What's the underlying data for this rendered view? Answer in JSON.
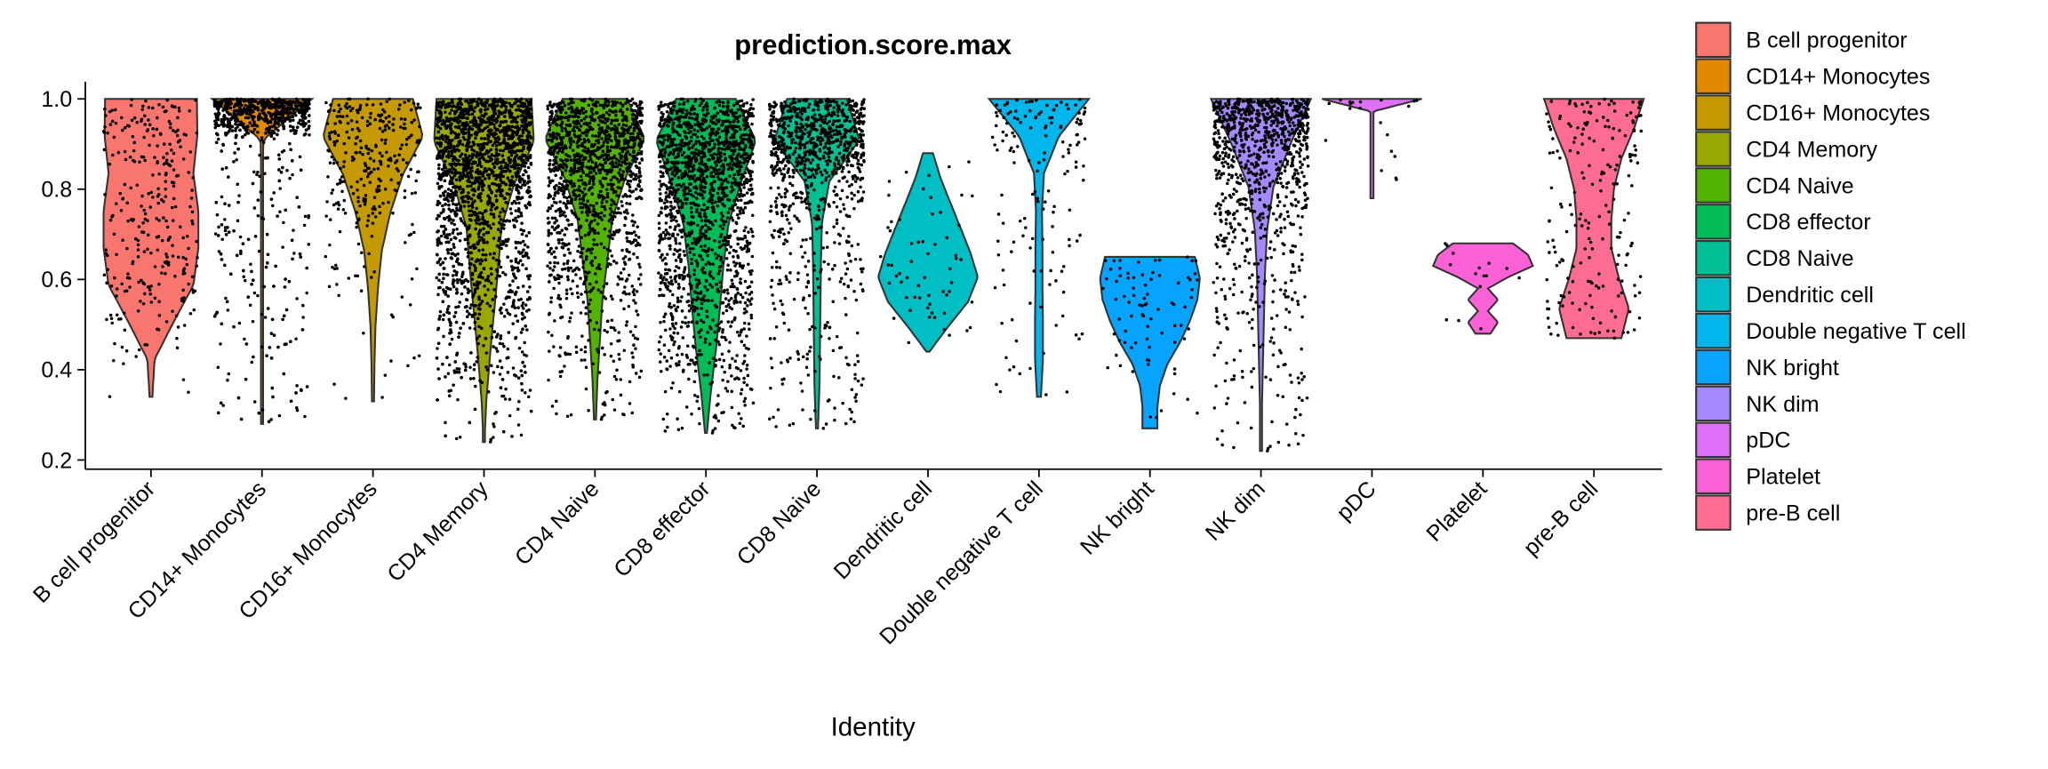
{
  "chart_data": {
    "type": "violin",
    "title": "prediction.score.max",
    "xlabel": "Identity",
    "ylabel": "",
    "ylim": [
      0.18,
      1.03
    ],
    "yticks": [
      "0.2",
      "0.4",
      "0.6",
      "0.8",
      "1.0"
    ],
    "grid": false,
    "legend_position": "right",
    "density_note": "relative density sampled at 9 evenly spaced points from min to max",
    "groups": [
      {
        "name": "B cell progenitor",
        "color": "#F8766D",
        "min": 0.34,
        "max": 1.0,
        "n": 300,
        "density": [
          0.03,
          0.07,
          0.45,
          0.85,
          0.95,
          0.95,
          0.85,
          0.93,
          0.92
        ]
      },
      {
        "name": "CD14+ Monocytes",
        "color": "#E38900",
        "min": 0.28,
        "max": 1.0,
        "n": 1100,
        "density": [
          0.01,
          0.01,
          0.01,
          0.01,
          0.01,
          0.01,
          0.01,
          0.03,
          1.0
        ]
      },
      {
        "name": "CD16+ Monocytes",
        "color": "#C49A00",
        "min": 0.33,
        "max": 1.0,
        "n": 300,
        "density": [
          0.02,
          0.03,
          0.05,
          0.1,
          0.18,
          0.35,
          0.6,
          1.0,
          0.8
        ]
      },
      {
        "name": "CD4 Memory",
        "color": "#99A800",
        "min": 0.24,
        "max": 1.0,
        "n": 2600,
        "density": [
          0.01,
          0.05,
          0.12,
          0.2,
          0.28,
          0.35,
          0.6,
          1.0,
          0.95
        ]
      },
      {
        "name": "CD4 Naive",
        "color": "#53B400",
        "min": 0.29,
        "max": 1.0,
        "n": 1400,
        "density": [
          0.02,
          0.05,
          0.1,
          0.15,
          0.25,
          0.35,
          0.6,
          1.0,
          0.65
        ]
      },
      {
        "name": "CD8 effector",
        "color": "#00BC56",
        "min": 0.26,
        "max": 1.0,
        "n": 1700,
        "density": [
          0.02,
          0.1,
          0.2,
          0.28,
          0.35,
          0.45,
          0.7,
          1.0,
          0.6
        ]
      },
      {
        "name": "CD8 Naive",
        "color": "#00C094",
        "min": 0.27,
        "max": 1.0,
        "n": 1000,
        "density": [
          0.02,
          0.05,
          0.06,
          0.07,
          0.08,
          0.1,
          0.25,
          0.85,
          0.6
        ]
      },
      {
        "name": "Dendritic cell",
        "color": "#00BFC4",
        "min": 0.44,
        "max": 0.88,
        "n": 60,
        "density": [
          0.03,
          0.4,
          0.8,
          1.0,
          0.85,
          0.65,
          0.45,
          0.25,
          0.1
        ]
      },
      {
        "name": "Double negative T cell",
        "color": "#00B6EB",
        "min": 0.34,
        "max": 1.0,
        "n": 150,
        "density": [
          0.04,
          0.08,
          0.08,
          0.07,
          0.07,
          0.06,
          0.1,
          0.4,
          1.0
        ]
      },
      {
        "name": "NK bright",
        "color": "#06A4FF",
        "min": 0.27,
        "max": 0.65,
        "n": 80,
        "density": [
          0.15,
          0.15,
          0.2,
          0.35,
          0.6,
          0.8,
          0.95,
          1.0,
          0.9
        ]
      },
      {
        "name": "NK dim",
        "color": "#A58AFF",
        "min": 0.22,
        "max": 1.0,
        "n": 1000,
        "density": [
          0.01,
          0.02,
          0.04,
          0.06,
          0.08,
          0.12,
          0.25,
          0.6,
          1.0
        ]
      },
      {
        "name": "pDC",
        "color": "#DF70F8",
        "min": 0.78,
        "max": 1.0,
        "n": 20,
        "density": [
          0.03,
          0.03,
          0.03,
          0.03,
          0.03,
          0.03,
          0.03,
          0.03,
          1.0
        ]
      },
      {
        "name": "Platelet",
        "color": "#FB61D7",
        "min": 0.48,
        "max": 0.68,
        "n": 15,
        "density": [
          0.15,
          0.3,
          0.1,
          0.3,
          0.1,
          0.5,
          1.0,
          0.9,
          0.6
        ]
      },
      {
        "name": "pre-B cell",
        "color": "#FF6C91",
        "min": 0.47,
        "max": 1.0,
        "n": 200,
        "density": [
          0.55,
          0.7,
          0.5,
          0.35,
          0.35,
          0.4,
          0.55,
          0.8,
          1.0
        ]
      }
    ]
  }
}
